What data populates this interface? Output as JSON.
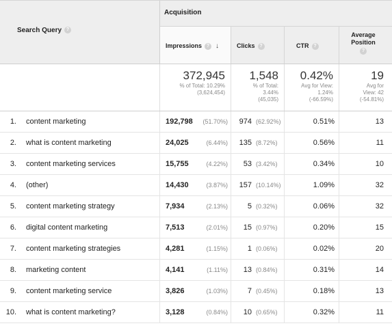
{
  "header": {
    "query_label": "Search Query",
    "group_label": "Acquisition",
    "columns": {
      "impressions": "Impressions",
      "clicks": "Clicks",
      "ctr": "CTR",
      "position": "Average Position"
    },
    "sort_column": "impressions",
    "sort_direction": "descending"
  },
  "icons": {
    "help": "?",
    "sort": "↓"
  },
  "totals": {
    "impressions": {
      "value": "372,945",
      "line1": "% of Total: 10.29%",
      "line2": "(3,624,454)"
    },
    "clicks": {
      "value": "1,548",
      "line1": "% of Total:",
      "line2": "3.44%",
      "line3": "(45,035)"
    },
    "ctr": {
      "value": "0.42%",
      "line1": "Avg for View:",
      "line2": "1.24%",
      "line3": "(-66.59%)"
    },
    "position": {
      "value": "19",
      "line1": "Avg for",
      "line2": "View: 42",
      "line3": "(-54.81%)"
    }
  },
  "rows": [
    {
      "n": "1.",
      "query": "content marketing",
      "impressions": "192,798",
      "impressions_pct": "(51.70%)",
      "clicks": "974",
      "clicks_pct": "(62.92%)",
      "ctr": "0.51%",
      "position": "13"
    },
    {
      "n": "2.",
      "query": "what is content marketing",
      "impressions": "24,025",
      "impressions_pct": "(6.44%)",
      "clicks": "135",
      "clicks_pct": "(8.72%)",
      "ctr": "0.56%",
      "position": "11"
    },
    {
      "n": "3.",
      "query": "content marketing services",
      "impressions": "15,755",
      "impressions_pct": "(4.22%)",
      "clicks": "53",
      "clicks_pct": "(3.42%)",
      "ctr": "0.34%",
      "position": "10"
    },
    {
      "n": "4.",
      "query": "(other)",
      "impressions": "14,430",
      "impressions_pct": "(3.87%)",
      "clicks": "157",
      "clicks_pct": "(10.14%)",
      "ctr": "1.09%",
      "position": "32"
    },
    {
      "n": "5.",
      "query": "content marketing strategy",
      "impressions": "7,934",
      "impressions_pct": "(2.13%)",
      "clicks": "5",
      "clicks_pct": "(0.32%)",
      "ctr": "0.06%",
      "position": "32"
    },
    {
      "n": "6.",
      "query": "digital content marketing",
      "impressions": "7,513",
      "impressions_pct": "(2.01%)",
      "clicks": "15",
      "clicks_pct": "(0.97%)",
      "ctr": "0.20%",
      "position": "15"
    },
    {
      "n": "7.",
      "query": "content marketing strategies",
      "impressions": "4,281",
      "impressions_pct": "(1.15%)",
      "clicks": "1",
      "clicks_pct": "(0.06%)",
      "ctr": "0.02%",
      "position": "20"
    },
    {
      "n": "8.",
      "query": "marketing content",
      "impressions": "4,141",
      "impressions_pct": "(1.11%)",
      "clicks": "13",
      "clicks_pct": "(0.84%)",
      "ctr": "0.31%",
      "position": "14"
    },
    {
      "n": "9.",
      "query": "content marketing service",
      "impressions": "3,826",
      "impressions_pct": "(1.03%)",
      "clicks": "7",
      "clicks_pct": "(0.45%)",
      "ctr": "0.18%",
      "position": "13"
    },
    {
      "n": "10.",
      "query": "what is content marketing?",
      "impressions": "3,128",
      "impressions_pct": "(0.84%)",
      "clicks": "10",
      "clicks_pct": "(0.65%)",
      "ctr": "0.32%",
      "position": "11"
    }
  ]
}
